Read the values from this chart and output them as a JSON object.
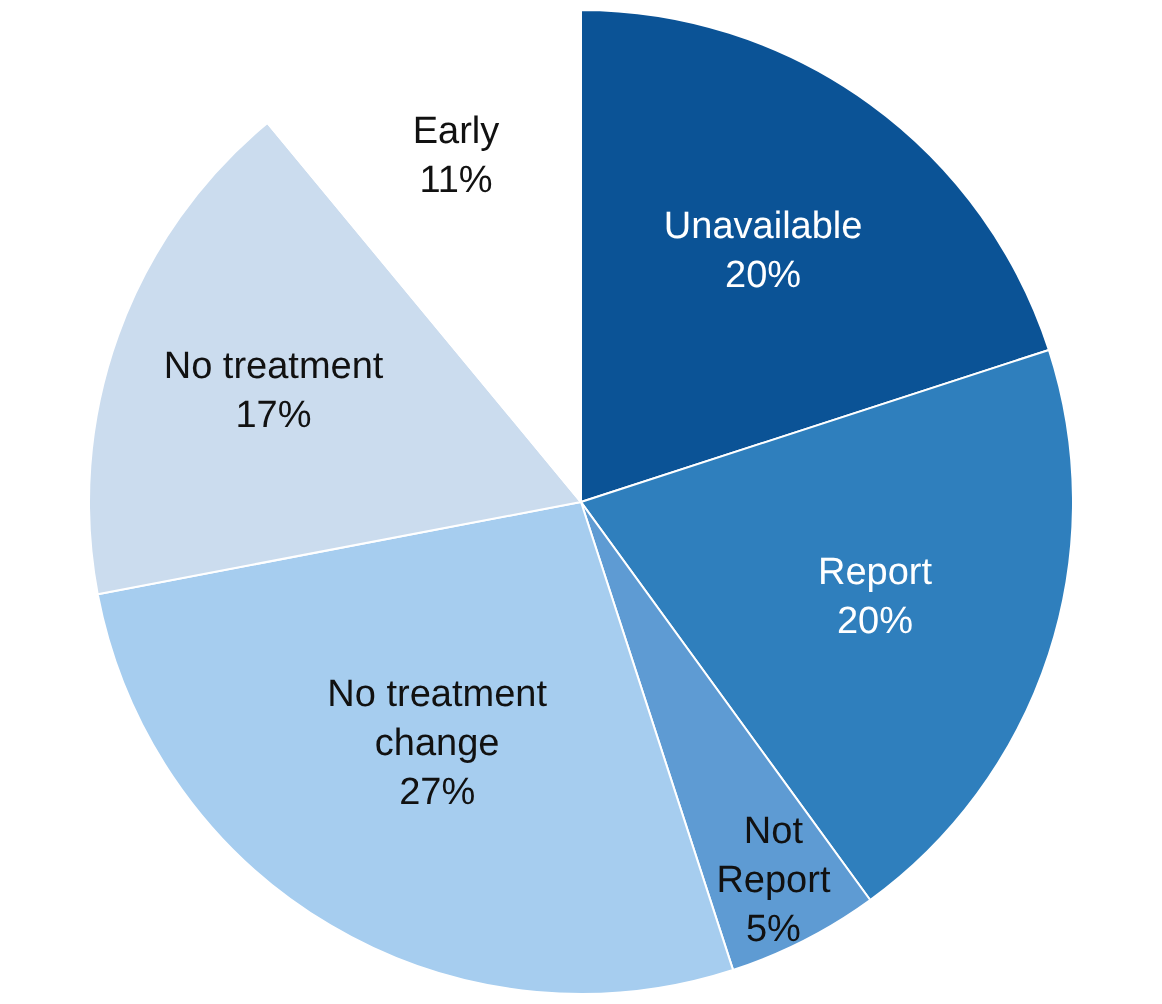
{
  "chart_data": {
    "type": "pie",
    "categories": [
      "Unavailable",
      "Report",
      "Not\nReport",
      "No treatment\nchange",
      "No treatment",
      "Early"
    ],
    "values": [
      20,
      20,
      5,
      27,
      17,
      11
    ],
    "value_labels": [
      "20%",
      "20%",
      "5%",
      "27%",
      "17%",
      "11%"
    ],
    "colors": [
      "#0b5396",
      "#2f7fbd",
      "#5e9bd3",
      "#a6cdef",
      "#cbdcee",
      "#ffffff"
    ]
  }
}
